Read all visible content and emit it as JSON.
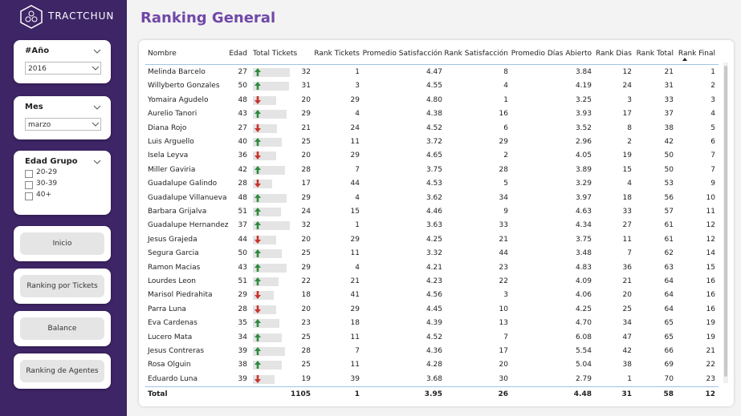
{
  "sidebar": {
    "logo": "TRACTCHUN",
    "filters": [
      {
        "label": "#Año",
        "value": "2016"
      },
      {
        "label": "Mes",
        "value": "marzo"
      }
    ],
    "group": {
      "label": "Edad Grupo",
      "options": [
        "20-29",
        "30-39",
        "40+"
      ]
    },
    "buttons": [
      "Inicio",
      "Ranking por Tickets",
      "Balance",
      "Ranking de Agentes"
    ]
  },
  "header": {
    "title": "Ranking General"
  },
  "table": {
    "columns": [
      "Nombre",
      "Edad",
      "Total Tickets",
      "Rank Tickets",
      "Promedio Satisfacción",
      "Rank Satisfacción",
      "Promedio Días Abierto",
      "Rank Dias",
      "Rank Total",
      "Rank Final"
    ],
    "rows": [
      [
        "Melinda Barcelo",
        "27",
        "32",
        "1",
        "4.47",
        "8",
        "3.84",
        "12",
        "21",
        "1"
      ],
      [
        "Willyberto Gonzales",
        "50",
        "31",
        "3",
        "4.55",
        "4",
        "4.19",
        "24",
        "31",
        "2"
      ],
      [
        "Yomaira Agudelo",
        "48",
        "20",
        "29",
        "4.80",
        "1",
        "3.25",
        "3",
        "33",
        "3"
      ],
      [
        "Aurelio Tanori",
        "43",
        "29",
        "4",
        "4.38",
        "16",
        "3.93",
        "17",
        "37",
        "4"
      ],
      [
        "Diana Rojo",
        "27",
        "21",
        "24",
        "4.52",
        "6",
        "3.52",
        "8",
        "38",
        "5"
      ],
      [
        "Luis Arguello",
        "40",
        "25",
        "11",
        "3.72",
        "29",
        "2.96",
        "2",
        "42",
        "6"
      ],
      [
        "Isela Leyva",
        "36",
        "20",
        "29",
        "4.65",
        "2",
        "4.05",
        "19",
        "50",
        "7"
      ],
      [
        "Miller Gaviria",
        "42",
        "28",
        "7",
        "3.75",
        "28",
        "3.89",
        "15",
        "50",
        "7"
      ],
      [
        "Guadalupe Galindo",
        "28",
        "17",
        "44",
        "4.53",
        "5",
        "3.29",
        "4",
        "53",
        "9"
      ],
      [
        "Guadalupe Villanueva",
        "48",
        "29",
        "4",
        "3.62",
        "34",
        "3.97",
        "18",
        "56",
        "10"
      ],
      [
        "Barbara Grijalva",
        "51",
        "24",
        "15",
        "4.46",
        "9",
        "4.63",
        "33",
        "57",
        "11"
      ],
      [
        "Guadalupe Hernandez",
        "37",
        "32",
        "1",
        "3.63",
        "33",
        "4.34",
        "27",
        "61",
        "12"
      ],
      [
        "Jesus Grajeda",
        "44",
        "20",
        "29",
        "4.25",
        "21",
        "3.75",
        "11",
        "61",
        "12"
      ],
      [
        "Segura Garcia",
        "50",
        "25",
        "11",
        "3.32",
        "44",
        "3.48",
        "7",
        "62",
        "14"
      ],
      [
        "Ramon Macias",
        "43",
        "29",
        "4",
        "4.21",
        "23",
        "4.83",
        "36",
        "63",
        "15"
      ],
      [
        "Lourdes Leon",
        "51",
        "22",
        "21",
        "4.23",
        "22",
        "4.09",
        "21",
        "64",
        "16"
      ],
      [
        "Marisol Piedrahita",
        "29",
        "18",
        "41",
        "4.56",
        "3",
        "4.06",
        "20",
        "64",
        "16"
      ],
      [
        "Parra Luna",
        "28",
        "20",
        "29",
        "4.45",
        "10",
        "4.25",
        "25",
        "64",
        "16"
      ],
      [
        "Eva Cardenas",
        "35",
        "23",
        "18",
        "4.39",
        "13",
        "4.70",
        "34",
        "65",
        "19"
      ],
      [
        "Lucero Mata",
        "34",
        "25",
        "11",
        "4.52",
        "7",
        "6.08",
        "47",
        "65",
        "19"
      ],
      [
        "Jesus Contreras",
        "39",
        "28",
        "7",
        "4.36",
        "17",
        "5.54",
        "42",
        "66",
        "21"
      ],
      [
        "Rosa Olguin",
        "38",
        "25",
        "11",
        "4.28",
        "20",
        "5.04",
        "38",
        "69",
        "22"
      ],
      [
        "Eduardo Luna",
        "39",
        "19",
        "39",
        "3.68",
        "30",
        "2.79",
        "1",
        "70",
        "23"
      ]
    ],
    "trend": [
      "up",
      "up",
      "down",
      "up",
      "down",
      "up",
      "down",
      "up",
      "down",
      "up",
      "up",
      "up",
      "down",
      "up",
      "up",
      "up",
      "down",
      "down",
      "up",
      "up",
      "up",
      "up",
      "down"
    ],
    "total": [
      "Total",
      "",
      "1105",
      "1",
      "3.95",
      "26",
      "4.48",
      "31",
      "58",
      "12"
    ]
  }
}
